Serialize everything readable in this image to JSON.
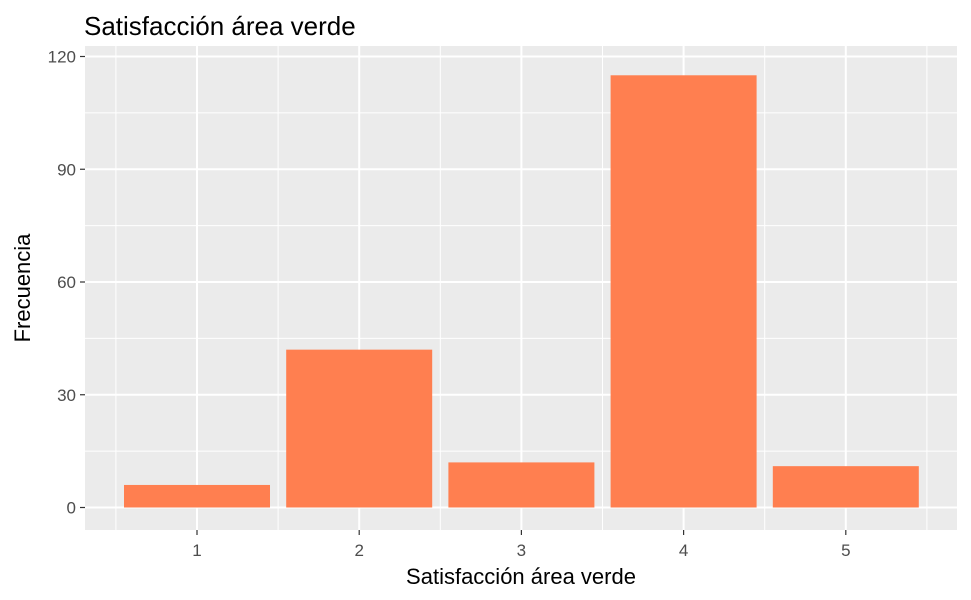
{
  "chart_data": {
    "type": "bar",
    "title": "Satisfacción área verde",
    "xlabel": "Satisfacción área verde",
    "ylabel": "Frecuencia",
    "categories": [
      "1",
      "2",
      "3",
      "4",
      "5"
    ],
    "values": [
      6,
      42,
      12,
      115,
      11
    ],
    "ylim": [
      0,
      120
    ],
    "yticks": [
      0,
      30,
      60,
      90,
      120
    ],
    "grid": true,
    "colors": {
      "bar": "#ff7f50",
      "panel": "#ebebeb",
      "grid": "#ffffff",
      "tick": "#333333"
    }
  }
}
